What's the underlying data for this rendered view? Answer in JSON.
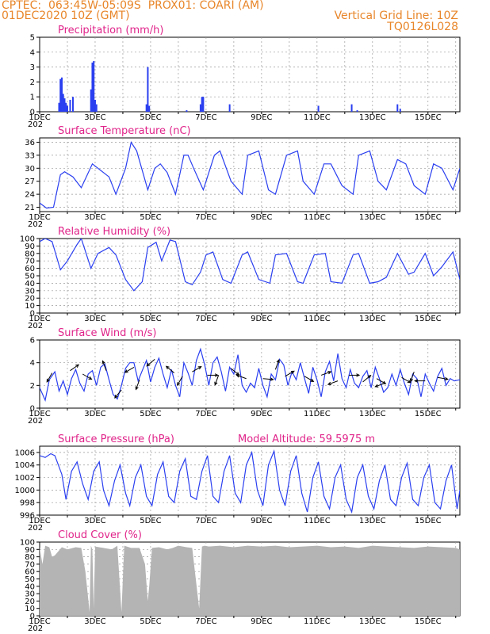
{
  "header": {
    "line1": "CPTEC:  063:45W-05:09S  PROX01: COARI (AM)",
    "line2": "01DEC2020 10Z (GMT)",
    "grid_note": "Vertical Grid Line: 10Z",
    "code": "TQ0126L028"
  },
  "x_ticks": [
    "1DEC",
    "3DEC",
    "5DEC",
    "7DEC",
    "9DEC",
    "11DEC",
    "13DEC",
    "15DEC"
  ],
  "year_label": "202",
  "colors": {
    "header": "#e8862a",
    "title": "#e0248a",
    "line": "#2a3ff0",
    "cloud": "#b4b4b4",
    "grid": "#9a9a9a",
    "arrow": "#000000"
  },
  "chart_data": [
    {
      "type": "bar",
      "title": "Precipitation (mm/h)",
      "ylim": [
        0,
        5
      ],
      "yticks": [
        "0",
        "1",
        "2",
        "3",
        "4",
        "5"
      ],
      "x_unit": "days since 01DEC2020 10Z",
      "bars": [
        [
          0.7,
          0.6
        ],
        [
          0.75,
          2.2
        ],
        [
          0.8,
          2.3
        ],
        [
          0.85,
          1.2
        ],
        [
          0.9,
          0.9
        ],
        [
          0.95,
          0.6
        ],
        [
          1.0,
          0.4
        ],
        [
          1.1,
          0.8
        ],
        [
          1.2,
          1.0
        ],
        [
          1.85,
          1.5
        ],
        [
          1.9,
          3.3
        ],
        [
          1.95,
          3.4
        ],
        [
          2.0,
          0.8
        ],
        [
          2.05,
          0.5
        ],
        [
          3.85,
          0.5
        ],
        [
          3.9,
          3.0
        ],
        [
          3.95,
          0.4
        ],
        [
          5.3,
          0.1
        ],
        [
          5.8,
          0.5
        ],
        [
          5.85,
          1.0
        ],
        [
          5.9,
          1.0
        ],
        [
          6.85,
          0.5
        ],
        [
          10.05,
          0.4
        ],
        [
          11.25,
          0.5
        ],
        [
          11.45,
          0.1
        ],
        [
          12.9,
          0.5
        ],
        [
          13.0,
          0.2
        ]
      ],
      "grid": true
    },
    {
      "type": "line",
      "title": "Surface Temperature (nC)",
      "ylim": [
        20,
        37
      ],
      "yticks": [
        "21",
        "24",
        "27",
        "30",
        "33",
        "36"
      ],
      "x": [
        0,
        0.25,
        0.5,
        0.75,
        0.9,
        1.2,
        1.5,
        1.9,
        2.1,
        2.5,
        2.75,
        3.1,
        3.3,
        3.5,
        3.9,
        4.15,
        4.35,
        4.6,
        4.9,
        5.2,
        5.35,
        5.55,
        5.9,
        6.3,
        6.5,
        6.9,
        7.3,
        7.5,
        7.9,
        8.25,
        8.5,
        8.9,
        9.3,
        9.5,
        9.9,
        10.25,
        10.5,
        10.9,
        11.3,
        11.5,
        11.9,
        12.2,
        12.5,
        12.9,
        13.2,
        13.5,
        13.9,
        14.2,
        14.5,
        14.9,
        15.15
      ],
      "values": [
        22,
        20.8,
        21,
        28.5,
        29.2,
        28,
        25.5,
        31,
        30,
        28,
        24,
        30,
        36,
        34,
        25,
        30,
        31,
        29,
        24,
        33,
        33,
        30,
        25,
        33,
        34,
        27,
        24,
        33,
        34,
        25,
        24,
        33,
        34,
        27,
        24,
        31,
        31,
        26,
        24,
        33,
        34,
        27,
        25,
        32,
        31,
        26,
        24,
        31,
        30,
        25,
        30
      ],
      "grid": true
    },
    {
      "type": "line",
      "title": "Relative Humidity (%)",
      "ylim": [
        0,
        100
      ],
      "yticks": [
        "0",
        "10",
        "20",
        "30",
        "40",
        "50",
        "60",
        "70",
        "80",
        "90",
        "100"
      ],
      "x": [
        0,
        0.2,
        0.45,
        0.75,
        1.0,
        1.35,
        1.5,
        1.85,
        2.1,
        2.5,
        2.75,
        3.1,
        3.4,
        3.7,
        3.9,
        4.2,
        4.4,
        4.7,
        4.9,
        5.25,
        5.5,
        5.8,
        6.0,
        6.25,
        6.6,
        6.9,
        7.3,
        7.5,
        7.9,
        8.3,
        8.5,
        8.9,
        9.3,
        9.5,
        9.9,
        10.3,
        10.5,
        10.9,
        11.3,
        11.5,
        11.9,
        12.2,
        12.5,
        12.9,
        13.3,
        13.5,
        13.9,
        14.2,
        14.5,
        14.9,
        15.15
      ],
      "values": [
        96,
        100,
        96,
        58,
        70,
        92,
        100,
        60,
        80,
        88,
        78,
        45,
        30,
        42,
        88,
        95,
        70,
        98,
        96,
        42,
        38,
        55,
        78,
        82,
        45,
        40,
        78,
        82,
        45,
        40,
        78,
        80,
        42,
        40,
        78,
        80,
        42,
        40,
        78,
        80,
        40,
        42,
        48,
        80,
        52,
        55,
        80,
        50,
        62,
        82,
        45
      ],
      "grid": true
    },
    {
      "type": "line",
      "title": "Surface Wind (m/s)",
      "ylim": [
        0,
        6
      ],
      "yticks": [
        "0",
        "2",
        "4",
        "6"
      ],
      "x": [
        0,
        0.2,
        0.35,
        0.55,
        0.7,
        0.85,
        1.0,
        1.15,
        1.3,
        1.45,
        1.6,
        1.75,
        1.9,
        2.05,
        2.2,
        2.35,
        2.5,
        2.65,
        2.8,
        2.95,
        3.1,
        3.25,
        3.4,
        3.55,
        3.7,
        3.85,
        4.0,
        4.15,
        4.3,
        4.45,
        4.6,
        4.75,
        4.9,
        5.05,
        5.2,
        5.35,
        5.5,
        5.65,
        5.8,
        5.95,
        6.1,
        6.25,
        6.4,
        6.55,
        6.7,
        6.85,
        7.0,
        7.15,
        7.3,
        7.45,
        7.6,
        7.75,
        7.9,
        8.05,
        8.2,
        8.35,
        8.5,
        8.65,
        8.8,
        8.95,
        9.1,
        9.25,
        9.4,
        9.55,
        9.7,
        9.85,
        10.0,
        10.15,
        10.3,
        10.45,
        10.6,
        10.75,
        10.9,
        11.05,
        11.2,
        11.35,
        11.5,
        11.65,
        11.8,
        11.95,
        12.1,
        12.25,
        12.4,
        12.55,
        12.7,
        12.85,
        13.0,
        13.15,
        13.3,
        13.45,
        13.6,
        13.75,
        13.9,
        14.05,
        14.2,
        14.35,
        14.5,
        14.65,
        14.8,
        14.95,
        15.15
      ],
      "values": [
        1.8,
        0.7,
        2.5,
        3.2,
        1.5,
        2.4,
        1.2,
        2.6,
        3.4,
        2.2,
        1.5,
        3.0,
        3.3,
        2.0,
        3.6,
        3.9,
        2.5,
        1.2,
        0.8,
        2.0,
        3.5,
        4.0,
        4.0,
        2.4,
        3.3,
        4.2,
        2.3,
        3.6,
        4.4,
        3.0,
        1.8,
        3.4,
        2.0,
        1.0,
        4.0,
        3.1,
        2.0,
        4.2,
        5.2,
        3.8,
        2.0,
        4.0,
        4.5,
        3.2,
        1.5,
        3.6,
        3.0,
        4.7,
        2.0,
        1.4,
        2.2,
        1.8,
        3.5,
        2.0,
        1.0,
        3.0,
        2.5,
        4.3,
        3.8,
        2.0,
        3.2,
        2.5,
        4.0,
        2.6,
        1.3,
        3.6,
        2.5,
        1.0,
        3.2,
        4.1,
        2.4,
        4.8,
        2.6,
        1.8,
        3.4,
        2.2,
        1.8,
        2.8,
        3.3,
        1.8,
        3.6,
        2.6,
        1.4,
        1.8,
        3.0,
        2.0,
        3.4,
        2.2,
        1.2,
        3.0,
        2.6,
        1.0,
        3.0,
        2.2,
        1.5,
        2.8,
        3.5,
        2.0,
        2.6,
        2.4,
        2.5
      ],
      "arrows": [
        [
          0.45,
          3.1,
          240
        ],
        [
          1.1,
          3.3,
          35
        ],
        [
          1.55,
          3.0,
          330
        ],
        [
          2.4,
          3.3,
          110
        ],
        [
          2.95,
          1.6,
          230
        ],
        [
          3.4,
          3.6,
          210
        ],
        [
          3.6,
          2.5,
          250
        ],
        [
          4.15,
          4.3,
          220
        ],
        [
          4.85,
          3.1,
          140
        ],
        [
          5.15,
          2.8,
          240
        ],
        [
          5.5,
          3.2,
          30
        ],
        [
          6.05,
          2.9,
          0
        ],
        [
          6.45,
          2.9,
          250
        ],
        [
          6.9,
          3.5,
          320
        ],
        [
          7.45,
          2.6,
          160
        ],
        [
          8.05,
          2.6,
          355
        ],
        [
          8.5,
          3.4,
          70
        ],
        [
          8.85,
          2.8,
          30
        ],
        [
          9.55,
          2.8,
          330
        ],
        [
          10.15,
          2.9,
          20
        ],
        [
          10.75,
          2.4,
          200
        ],
        [
          11.15,
          2.9,
          0
        ],
        [
          11.65,
          2.3,
          40
        ],
        [
          12.15,
          2.6,
          330
        ],
        [
          12.45,
          2.2,
          200
        ],
        [
          13.05,
          2.7,
          330
        ],
        [
          13.5,
          3.2,
          250
        ],
        [
          13.9,
          2.4,
          180
        ],
        [
          14.35,
          2.7,
          350
        ]
      ],
      "grid": true
    },
    {
      "type": "line",
      "title": "Surface Pressure (hPa)",
      "annotation": "Model Altitude: 59.5975 m",
      "ylim": [
        996,
        1007
      ],
      "yticks": [
        "996",
        "998",
        "1000",
        "1002",
        "1004",
        "1006"
      ],
      "x": [
        0,
        0.2,
        0.4,
        0.55,
        0.8,
        0.95,
        1.15,
        1.35,
        1.55,
        1.75,
        1.95,
        2.15,
        2.3,
        2.5,
        2.7,
        2.9,
        3.1,
        3.25,
        3.45,
        3.65,
        3.85,
        4.05,
        4.25,
        4.45,
        4.65,
        4.85,
        5.05,
        5.25,
        5.45,
        5.65,
        5.85,
        6.05,
        6.25,
        6.45,
        6.65,
        6.85,
        7.05,
        7.25,
        7.45,
        7.65,
        7.85,
        8.05,
        8.25,
        8.45,
        8.65,
        8.85,
        9.05,
        9.25,
        9.45,
        9.65,
        9.85,
        10.05,
        10.25,
        10.45,
        10.65,
        10.85,
        11.05,
        11.25,
        11.45,
        11.65,
        11.85,
        12.05,
        12.25,
        12.45,
        12.65,
        12.85,
        13.05,
        13.25,
        13.45,
        13.65,
        13.85,
        14.05,
        14.25,
        14.45,
        14.65,
        14.85,
        15.05,
        15.15
      ],
      "values": [
        1005.5,
        1005.2,
        1005.8,
        1005.5,
        1002.5,
        998.5,
        1003.0,
        1004.5,
        1001.0,
        998.5,
        1003.0,
        1004.5,
        1000.0,
        997.5,
        1001.5,
        1004.0,
        999.5,
        997.5,
        1002.0,
        1004.0,
        999.0,
        997.5,
        1002.5,
        1004.5,
        999.0,
        998.0,
        1003.0,
        1005.0,
        999.0,
        998.5,
        1003.0,
        1005.5,
        999.0,
        998.0,
        1003.0,
        1005.5,
        999.5,
        998.0,
        1004.0,
        1006.0,
        1000.0,
        997.5,
        1004.0,
        1006.2,
        1000.0,
        997.5,
        1003.0,
        1005.5,
        999.5,
        996.5,
        1002.0,
        1004.5,
        999.0,
        997.0,
        1002.0,
        1004.0,
        998.5,
        996.5,
        1002.0,
        1004.0,
        999.0,
        997.0,
        1001.5,
        1004.0,
        998.5,
        997.5,
        1002.0,
        1004.3,
        998.5,
        997.5,
        1002.0,
        1004.0,
        998.0,
        997.0,
        1001.5,
        1004.0,
        997.0,
        1000.0
      ],
      "grid": true
    },
    {
      "type": "area",
      "title": "Cloud Cover (%)",
      "ylim": [
        0,
        100
      ],
      "yticks": [
        "0",
        "10",
        "20",
        "30",
        "40",
        "50",
        "60",
        "70",
        "80",
        "90",
        "100"
      ],
      "x": [
        0,
        0.1,
        0.2,
        0.35,
        0.45,
        0.55,
        0.8,
        1.0,
        1.3,
        1.5,
        1.65,
        1.8,
        1.85,
        1.9,
        1.95,
        2.0,
        2.3,
        2.6,
        2.8,
        2.9,
        2.95,
        3.05,
        3.3,
        3.6,
        3.8,
        3.9,
        3.95,
        4.05,
        4.3,
        4.6,
        4.8,
        5.0,
        5.3,
        5.5,
        5.75,
        5.85,
        5.95,
        6.1,
        6.5,
        7.0,
        7.5,
        8.0,
        8.5,
        9.0,
        9.5,
        10.0,
        10.5,
        11.0,
        11.5,
        12.0,
        12.5,
        13.0,
        13.5,
        14.0,
        14.5,
        15.0,
        15.15
      ],
      "values": [
        93,
        70,
        95,
        93,
        80,
        82,
        93,
        90,
        93,
        92,
        60,
        5,
        95,
        90,
        10,
        94,
        92,
        90,
        95,
        35,
        5,
        95,
        92,
        92,
        70,
        20,
        40,
        92,
        93,
        90,
        92,
        95,
        93,
        92,
        10,
        94,
        95,
        94,
        95,
        93,
        95,
        94,
        95,
        93,
        94,
        95,
        93,
        94,
        92,
        95,
        94,
        93,
        92,
        94,
        93,
        92,
        90
      ],
      "grid": true
    }
  ]
}
